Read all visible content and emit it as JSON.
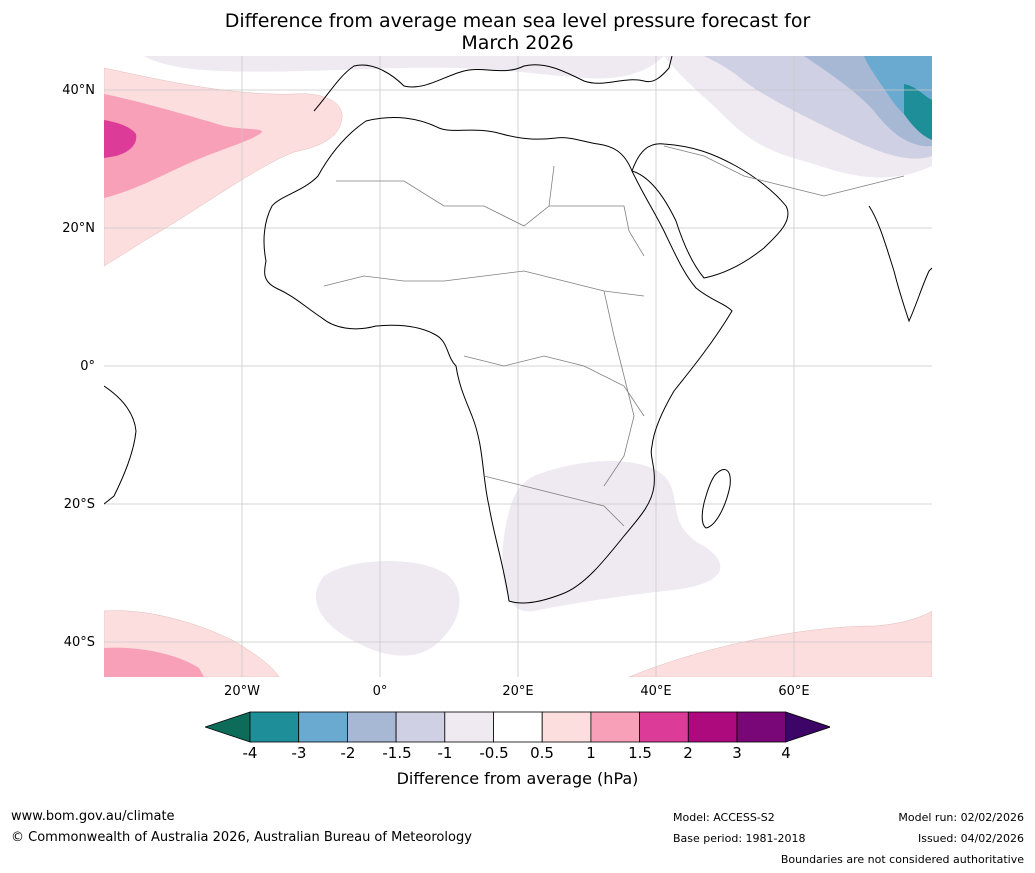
{
  "title": {
    "line1": "Difference from average mean sea level pressure forecast for",
    "line2": "March 2026"
  },
  "map": {
    "lat_labels": [
      "40°N",
      "20°N",
      "0°",
      "20°S",
      "40°S"
    ],
    "lon_labels": [
      "20°W",
      "0°",
      "20°E",
      "40°E",
      "60°E"
    ]
  },
  "colorbar": {
    "ticks": [
      "-4",
      "-3",
      "-2",
      "-1.5",
      "-1",
      "-0.5",
      "0.5",
      "1",
      "1.5",
      "2",
      "3",
      "4"
    ],
    "colors": {
      "below_min": "#0d6b5a",
      "bins": [
        "#1e8f99",
        "#6aaad0",
        "#a7b8d4",
        "#cfd0e4",
        "#efeaf2",
        "#ffffff",
        "#fddede",
        "#f8a0b8",
        "#dd3b98",
        "#ad0a7e",
        "#7a0777"
      ],
      "above_max": "#3d0566"
    },
    "title": "Difference from average (hPa)"
  },
  "footer": {
    "website": "www.bom.gov.au/climate",
    "copyright": "© Commonwealth of Australia 2026, Australian Bureau of Meteorology",
    "model": "Model: ACCESS-S2",
    "base_period": "Base period: 1981-2018",
    "model_run": "Model run: 02/02/2026",
    "issued": "Issued: 04/02/2026",
    "disclaimer": "Boundaries are not considered authoritative"
  }
}
